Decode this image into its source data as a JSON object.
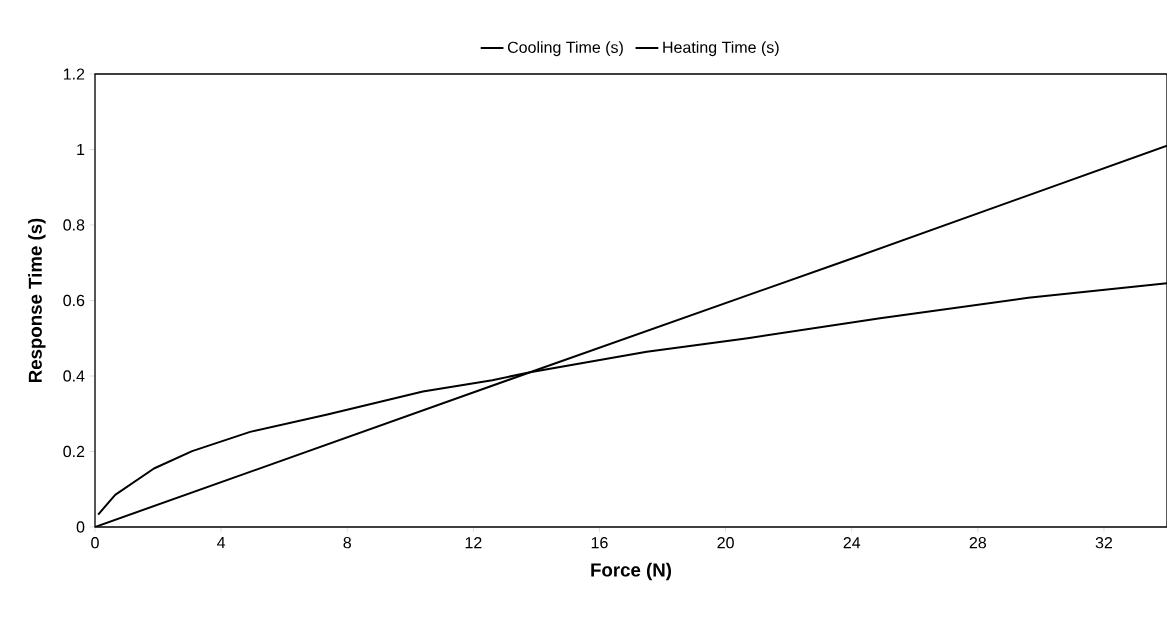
{
  "chart_data": {
    "type": "line",
    "xlabel": "Force (N)",
    "ylabel": "Response Time (s)",
    "xlim": [
      0,
      34
    ],
    "xticks": [
      0,
      4,
      8,
      12,
      16,
      20,
      24,
      28,
      32
    ],
    "ylim": [
      0,
      1.2
    ],
    "yticks": [
      0,
      0.2,
      0.4,
      0.6,
      0.8,
      1,
      1.2
    ],
    "legend": "top",
    "grid": false,
    "marker": "none",
    "line_style": "solid",
    "series": [
      {
        "name": "Cooling Time (s)",
        "color": "#000000",
        "x": [
          0,
          13.8,
          24.3,
          34.0
        ],
        "values": [
          0,
          0.41,
          0.72,
          1.01
        ]
      },
      {
        "name": "Heating Time (s)",
        "color": "#000000",
        "x": [
          0.1,
          0.64,
          1.87,
          3.08,
          4.92,
          7.37,
          10.4,
          12.6,
          13.8,
          17.5,
          20.7,
          24.9,
          29.6,
          34.0
        ],
        "values": [
          0.033,
          0.085,
          0.155,
          0.201,
          0.252,
          0.298,
          0.359,
          0.389,
          0.41,
          0.464,
          0.5,
          0.553,
          0.607,
          0.646
        ]
      }
    ]
  }
}
